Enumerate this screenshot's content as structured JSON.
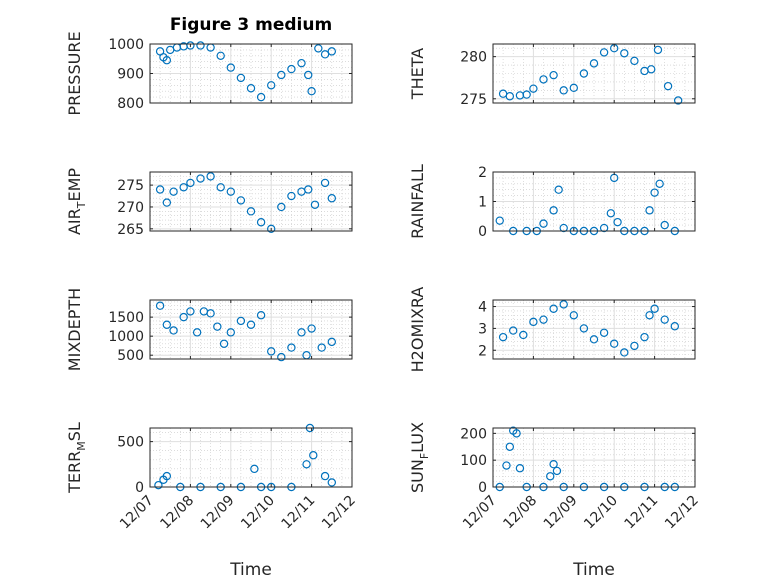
{
  "figure": {
    "title": "Figure 3 medium",
    "xlabel": "Time"
  },
  "colors": {
    "marker": "#0072BD",
    "axis": "#262626",
    "grid": "#dfdfdf",
    "minor_grid": "#c8c8c8"
  },
  "x_axis": {
    "range": [
      "2012-12-07",
      "2012-12-12"
    ],
    "ticks": [
      "2012-12-07",
      "2012-12-08",
      "2012-12-09",
      "2012-12-10",
      "2012-12-11",
      "2012-12-12"
    ],
    "tick_labels": [
      "12/07",
      "12/08",
      "12/09",
      "12/10",
      "12/11",
      "12/12"
    ]
  },
  "chart_data": [
    {
      "type": "scatter",
      "ylabel": "PRESSURE",
      "ylim": [
        800,
        1000
      ],
      "yticks": [
        800,
        900,
        1000
      ],
      "grid": true,
      "x": [
        "12/07 06:00",
        "12/07 08:00",
        "12/07 10:00",
        "12/07 12:00",
        "12/07 16:00",
        "12/07 20:00",
        "12/08 00:00",
        "12/08 06:00",
        "12/08 12:00",
        "12/08 18:00",
        "12/09 00:00",
        "12/09 06:00",
        "12/09 12:00",
        "12/09 18:00",
        "12/10 00:00",
        "12/10 06:00",
        "12/10 12:00",
        "12/10 18:00",
        "12/10 22:00",
        "12/11 00:00",
        "12/11 04:00",
        "12/11 08:00",
        "12/11 12:00"
      ],
      "y": [
        975,
        955,
        945,
        980,
        988,
        992,
        995,
        995,
        988,
        960,
        920,
        885,
        850,
        820,
        860,
        895,
        915,
        935,
        895,
        840,
        985,
        965,
        975
      ]
    },
    {
      "type": "scatter",
      "ylabel": "THETA",
      "ylim": [
        274.5,
        281.5
      ],
      "yticks": [
        275,
        280
      ],
      "grid": true,
      "x": [
        "12/07 06:00",
        "12/07 10:00",
        "12/07 16:00",
        "12/07 20:00",
        "12/08 00:00",
        "12/08 06:00",
        "12/08 12:00",
        "12/08 18:00",
        "12/09 00:00",
        "12/09 06:00",
        "12/09 12:00",
        "12/09 18:00",
        "12/10 00:00",
        "12/10 06:00",
        "12/10 12:00",
        "12/10 18:00",
        "12/10 22:00",
        "12/11 02:00",
        "12/11 08:00",
        "12/11 14:00"
      ],
      "y": [
        275.6,
        275.3,
        275.4,
        275.5,
        276.2,
        277.3,
        277.8,
        276.0,
        276.3,
        278.0,
        279.2,
        280.5,
        281.0,
        280.4,
        279.5,
        278.3,
        278.5,
        280.8,
        276.5,
        274.8
      ]
    },
    {
      "type": "scatter",
      "ylabel": "AIR_TEMP",
      "ylim": [
        264.5,
        278
      ],
      "yticks": [
        265,
        270,
        275
      ],
      "grid": true,
      "x": [
        "12/07 06:00",
        "12/07 10:00",
        "12/07 14:00",
        "12/07 20:00",
        "12/08 00:00",
        "12/08 06:00",
        "12/08 12:00",
        "12/08 18:00",
        "12/09 00:00",
        "12/09 06:00",
        "12/09 12:00",
        "12/09 18:00",
        "12/10 00:00",
        "12/10 06:00",
        "12/10 12:00",
        "12/10 18:00",
        "12/10 22:00",
        "12/11 02:00",
        "12/11 08:00",
        "12/11 12:00"
      ],
      "y": [
        274.0,
        271.0,
        273.5,
        274.5,
        275.5,
        276.5,
        277.0,
        274.5,
        273.5,
        271.5,
        269.0,
        266.5,
        265.0,
        270.0,
        272.5,
        273.5,
        274.0,
        270.5,
        275.5,
        272.0
      ]
    },
    {
      "type": "scatter",
      "ylabel": "RAINFALL",
      "ylim": [
        0,
        2
      ],
      "yticks": [
        0,
        1,
        2
      ],
      "grid": true,
      "x": [
        "12/07 04:00",
        "12/07 12:00",
        "12/07 20:00",
        "12/08 02:00",
        "12/08 06:00",
        "12/08 12:00",
        "12/08 15:00",
        "12/08 18:00",
        "12/09 00:00",
        "12/09 06:00",
        "12/09 12:00",
        "12/09 18:00",
        "12/09 22:00",
        "12/10 00:00",
        "12/10 02:00",
        "12/10 06:00",
        "12/10 12:00",
        "12/10 18:00",
        "12/10 21:00",
        "12/11 00:00",
        "12/11 03:00",
        "12/11 06:00",
        "12/11 12:00"
      ],
      "y": [
        0.35,
        0,
        0,
        0,
        0.25,
        0.7,
        1.4,
        0.1,
        0,
        0,
        0,
        0.1,
        0.6,
        1.8,
        0.3,
        0,
        0,
        0,
        0.7,
        1.3,
        1.6,
        0.2,
        0
      ]
    },
    {
      "type": "scatter",
      "ylabel": "MIXDEPTH",
      "ylim": [
        400,
        1950
      ],
      "yticks": [
        500,
        1000,
        1500
      ],
      "grid": true,
      "x": [
        "12/07 06:00",
        "12/07 10:00",
        "12/07 14:00",
        "12/07 20:00",
        "12/08 00:00",
        "12/08 04:00",
        "12/08 08:00",
        "12/08 12:00",
        "12/08 16:00",
        "12/08 20:00",
        "12/09 00:00",
        "12/09 06:00",
        "12/09 12:00",
        "12/09 18:00",
        "12/10 00:00",
        "12/10 06:00",
        "12/10 12:00",
        "12/10 18:00",
        "12/10 21:00",
        "12/11 00:00",
        "12/11 06:00",
        "12/11 12:00"
      ],
      "y": [
        1800,
        1300,
        1150,
        1500,
        1650,
        1100,
        1650,
        1600,
        1250,
        800,
        1100,
        1400,
        1300,
        1550,
        600,
        450,
        700,
        1100,
        500,
        1200,
        700,
        850
      ]
    },
    {
      "type": "scatter",
      "ylabel": "H2OMIXRA",
      "ylim": [
        1.6,
        4.3
      ],
      "yticks": [
        2,
        3,
        4
      ],
      "grid": true,
      "x": [
        "12/07 06:00",
        "12/07 12:00",
        "12/07 18:00",
        "12/08 00:00",
        "12/08 06:00",
        "12/08 12:00",
        "12/08 18:00",
        "12/09 00:00",
        "12/09 06:00",
        "12/09 12:00",
        "12/09 18:00",
        "12/10 00:00",
        "12/10 06:00",
        "12/10 12:00",
        "12/10 18:00",
        "12/10 21:00",
        "12/11 00:00",
        "12/11 06:00",
        "12/11 12:00"
      ],
      "y": [
        2.6,
        2.9,
        2.7,
        3.3,
        3.4,
        3.9,
        4.1,
        3.6,
        3.0,
        2.5,
        2.8,
        2.3,
        1.9,
        2.2,
        2.6,
        3.6,
        3.9,
        3.4,
        3.1
      ]
    },
    {
      "type": "scatter",
      "ylabel": "TERR_MSL",
      "ylim": [
        0,
        650
      ],
      "yticks": [
        0,
        500
      ],
      "grid": true,
      "x": [
        "12/07 05:00",
        "12/07 08:00",
        "12/07 10:00",
        "12/07 18:00",
        "12/08 06:00",
        "12/08 18:00",
        "12/09 06:00",
        "12/09 14:00",
        "12/09 18:00",
        "12/10 00:00",
        "12/10 12:00",
        "12/10 21:00",
        "12/10 23:00",
        "12/11 01:00",
        "12/11 08:00",
        "12/11 12:00"
      ],
      "y": [
        20,
        80,
        120,
        0,
        0,
        0,
        0,
        200,
        0,
        0,
        0,
        250,
        650,
        350,
        120,
        50
      ]
    },
    {
      "type": "scatter",
      "ylabel": "SUN_FLUX",
      "ylim": [
        0,
        220
      ],
      "yticks": [
        0,
        100,
        200
      ],
      "grid": true,
      "x": [
        "12/07 04:00",
        "12/07 08:00",
        "12/07 10:00",
        "12/07 12:00",
        "12/07 14:00",
        "12/07 16:00",
        "12/07 20:00",
        "12/08 06:00",
        "12/08 10:00",
        "12/08 12:00",
        "12/08 14:00",
        "12/08 18:00",
        "12/09 06:00",
        "12/09 18:00",
        "12/10 06:00",
        "12/10 18:00",
        "12/11 06:00",
        "12/11 12:00"
      ],
      "y": [
        0,
        80,
        150,
        210,
        200,
        70,
        0,
        0,
        40,
        85,
        60,
        0,
        0,
        0,
        0,
        0,
        0,
        0
      ]
    }
  ]
}
